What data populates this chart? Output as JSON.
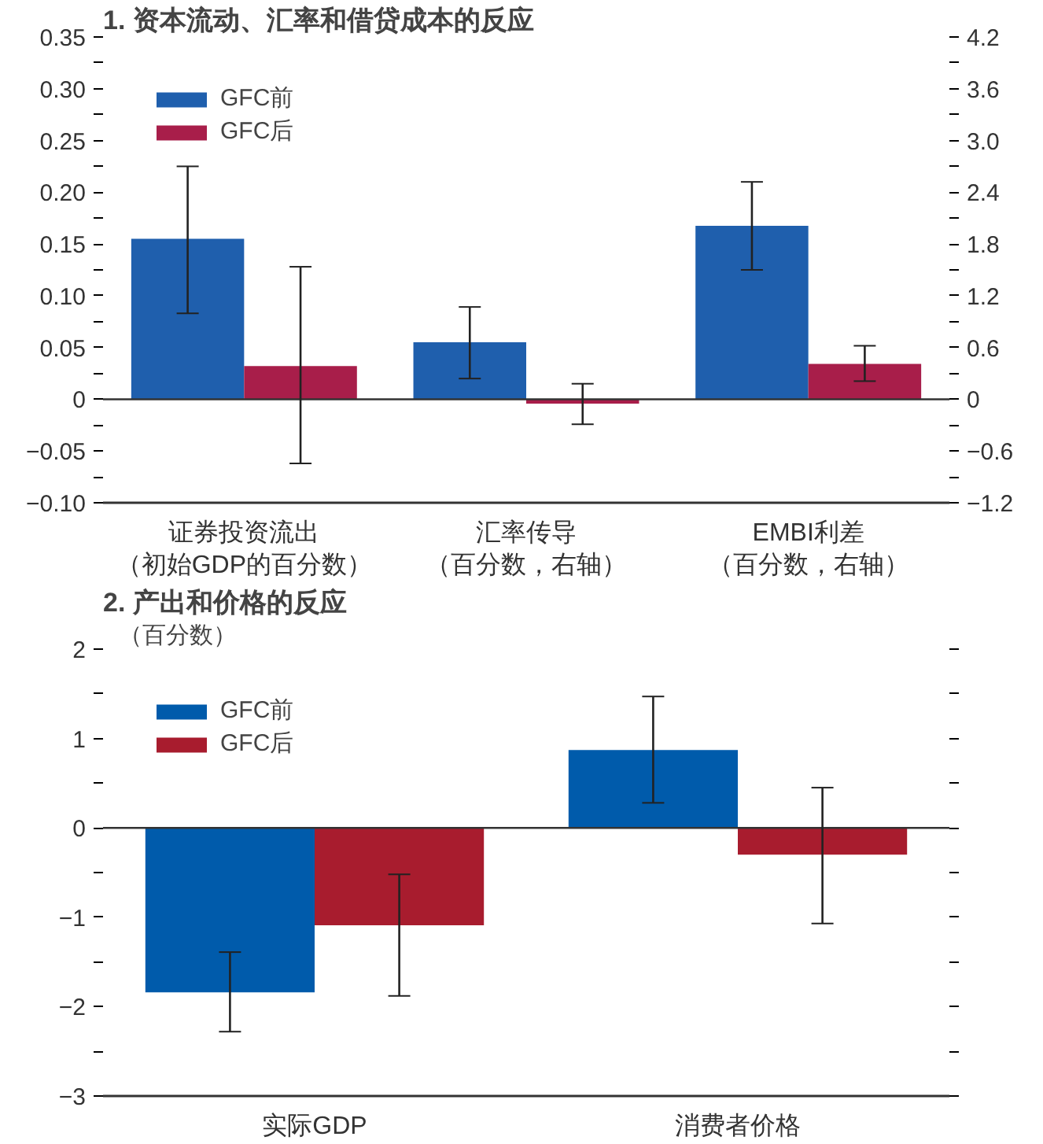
{
  "chart_data": [
    {
      "type": "bar",
      "title": "1. 资本流动、汇率和借贷成本的反应",
      "categories": [
        "证券投资流出（初始GDP的百分数）",
        "汇率传导（百分数，右轴）",
        "EMBI利差（百分数，右轴）"
      ],
      "series": [
        {
          "name": "GFC前",
          "color": "#1f5fad",
          "values": [
            0.155,
            null,
            null
          ],
          "errors": [
            [
              0.083,
              0.225
            ],
            null,
            null
          ]
        },
        {
          "name": "GFC后",
          "color": "#a81e4a",
          "values": [
            0.032,
            null,
            null
          ],
          "errors": [
            [
              -0.062,
              0.128
            ],
            null,
            null
          ]
        },
        {
          "color": "#1f5fad",
          "axis": "y2",
          "values": [
            null,
            0.66,
            2.01
          ],
          "errors": [
            null,
            [
              0.24,
              1.07
            ],
            [
              1.5,
              2.52
            ]
          ]
        },
        {
          "color": "#a81e4a",
          "axis": "y2",
          "values": [
            null,
            -0.05,
            0.41
          ],
          "errors": [
            null,
            [
              -0.29,
              0.18
            ],
            [
              0.21,
              0.62
            ]
          ]
        }
      ],
      "ylim": [
        -0.1,
        0.35
      ],
      "yticks": [
        {
          "value": -0.1,
          "label": "−0.10"
        },
        {
          "value": -0.075,
          "label": null
        },
        {
          "value": -0.05,
          "label": "−0.05"
        },
        {
          "value": -0.025,
          "label": null
        },
        0,
        {
          "value": 0.025,
          "label": null
        },
        0.05,
        {
          "value": 0.075,
          "label": null
        },
        {
          "value": 0.1,
          "label": "0.10"
        },
        {
          "value": 0.125,
          "label": null
        },
        0.15,
        {
          "value": 0.175,
          "label": null
        },
        {
          "value": 0.2,
          "label": "0.20"
        },
        {
          "value": 0.225,
          "label": null
        },
        0.25,
        {
          "value": 0.275,
          "label": null
        },
        {
          "value": 0.3,
          "label": "0.30"
        },
        {
          "value": 0.325,
          "label": null
        },
        0.35
      ],
      "y2lim": [
        -1.2,
        4.2
      ],
      "y2ticks": [
        {
          "value": -1.2,
          "label": "−1.2"
        },
        {
          "value": -0.9,
          "label": null
        },
        {
          "value": -0.6,
          "label": "−0.6"
        },
        {
          "value": -0.3,
          "label": null
        },
        0,
        {
          "value": 0.3,
          "label": null
        },
        0.6,
        {
          "value": 0.9,
          "label": null
        },
        1.2,
        {
          "value": 1.5,
          "label": null
        },
        1.8,
        {
          "value": 2.1,
          "label": null
        },
        2.4,
        {
          "value": 2.7,
          "label": null
        },
        {
          "value": 3.0,
          "label": "3.0"
        },
        {
          "value": 3.3,
          "label": null
        },
        3.6,
        {
          "value": 3.9,
          "label": null
        },
        4.2
      ],
      "ref_lines": [
        {
          "axis": "y",
          "value": 0,
          "color": "#333333"
        }
      ],
      "legend": "top left",
      "grid": false
    },
    {
      "type": "bar",
      "title": "2. 产出和价格的反应",
      "subtitle": "（百分数）",
      "categories": [
        "实际GDP",
        "消费者价格"
      ],
      "series": [
        {
          "name": "GFC前",
          "color": "#005bab",
          "values": [
            -1.84,
            0.87
          ],
          "errors": [
            [
              -2.28,
              -1.39
            ],
            [
              0.28,
              1.47
            ]
          ]
        },
        {
          "name": "GFC后",
          "color": "#a81c2e",
          "values": [
            -1.09,
            -0.3
          ],
          "errors": [
            [
              -1.88,
              -0.52
            ],
            [
              -1.07,
              0.45
            ]
          ]
        }
      ],
      "ylim": [
        -3,
        2
      ],
      "yticks": [
        {
          "value": -3,
          "label": "−3"
        },
        {
          "value": -2.5,
          "label": null
        },
        {
          "value": -2,
          "label": "−2"
        },
        {
          "value": -1.5,
          "label": null
        },
        {
          "value": -1,
          "label": "−1"
        },
        {
          "value": -0.5,
          "label": null
        },
        0,
        {
          "value": 0.5,
          "label": null
        },
        1,
        {
          "value": 1.5,
          "label": null
        },
        2
      ],
      "ref_lines": [
        {
          "axis": "y",
          "value": 0,
          "color": "#333333"
        }
      ],
      "legend": "top left",
      "grid": false
    }
  ]
}
